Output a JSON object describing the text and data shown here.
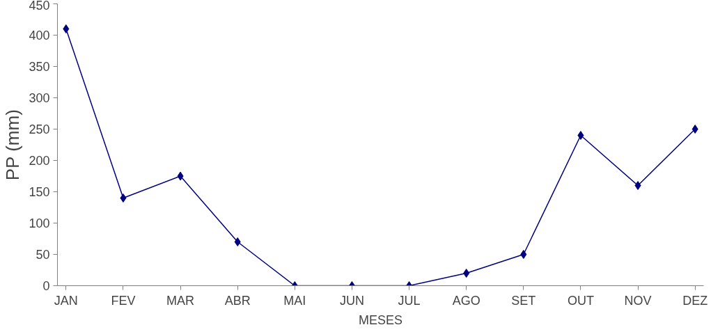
{
  "chart_data": {
    "type": "line",
    "xlabel": "MESES",
    "ylabel": "PP (mm)",
    "categories": [
      "JAN",
      "FEV",
      "MAR",
      "ABR",
      "MAI",
      "JUN",
      "JUL",
      "AGO",
      "SET",
      "OUT",
      "NOV",
      "DEZ"
    ],
    "series": [
      {
        "color": "#000080",
        "values": [
          410,
          140,
          175,
          70,
          0,
          0,
          0,
          20,
          50,
          240,
          160,
          250
        ]
      }
    ],
    "ylim": [
      0,
      450
    ],
    "yticks": [
      0,
      50,
      100,
      150,
      200,
      250,
      300,
      350,
      400,
      450
    ],
    "grid": false,
    "marker": "diamond",
    "line_style": "solid"
  }
}
